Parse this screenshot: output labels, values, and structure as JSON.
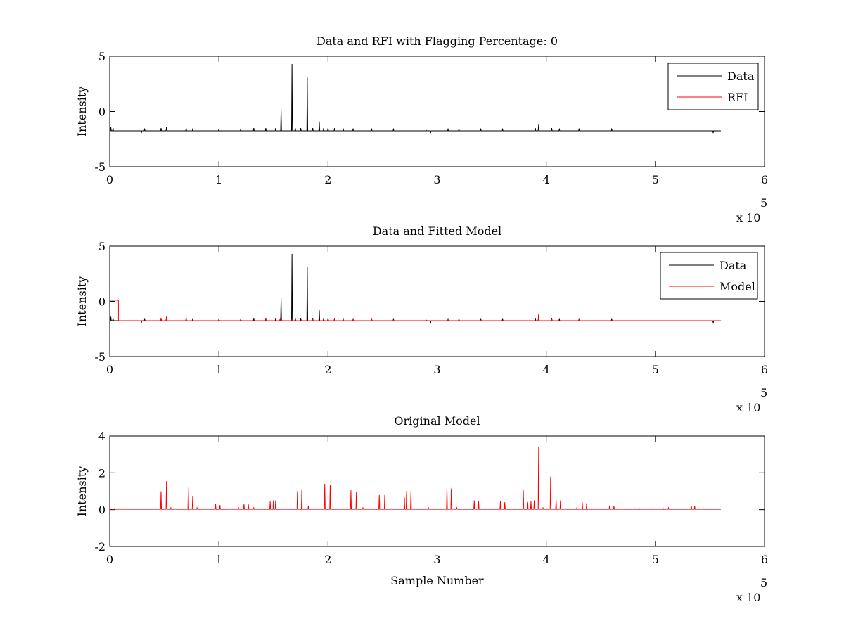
{
  "colors": {
    "data": "#000000",
    "rfi": "#ff0000",
    "model": "#ff0000",
    "background": "#ffffff",
    "axes": "#000000"
  },
  "chart_data": [
    {
      "type": "line",
      "title": "Data and RFI with Flagging Percentage: 0",
      "xlabel": "",
      "ylabel": "Intensity",
      "xlim": [
        0,
        600000
      ],
      "ylim": [
        -5,
        5
      ],
      "xticks": [
        0,
        1,
        2,
        3,
        4,
        5,
        6
      ],
      "xticklabels": [
        "0",
        "1",
        "2",
        "3",
        "4",
        "5",
        "6"
      ],
      "yticks": [
        -5,
        0,
        5
      ],
      "yticklabels": [
        "-5",
        "0",
        "5"
      ],
      "x_exponent_label": "x 10",
      "x_exponent_power": "5",
      "legend": "top-right",
      "series": [
        {
          "name": "Data",
          "color": "#000000",
          "baseline": -1.75,
          "x_end": 560000,
          "spikes": [
            [
              1000,
              -1.4
            ],
            [
              3000,
              -1.5
            ],
            [
              32000,
              -1.6
            ],
            [
              47000,
              -1.5
            ],
            [
              52000,
              -1.4
            ],
            [
              70000,
              -1.5
            ],
            [
              76000,
              -1.6
            ],
            [
              100000,
              -1.6
            ],
            [
              120000,
              -1.6
            ],
            [
              132000,
              -1.5
            ],
            [
              143000,
              -1.5
            ],
            [
              152000,
              -1.5
            ],
            [
              157000,
              0.2
            ],
            [
              167000,
              4.3
            ],
            [
              170000,
              -1.5
            ],
            [
              175000,
              -1.5
            ],
            [
              181000,
              3.1
            ],
            [
              186000,
              -1.5
            ],
            [
              192000,
              -0.9
            ],
            [
              196000,
              -1.5
            ],
            [
              200000,
              -1.5
            ],
            [
              206000,
              -1.5
            ],
            [
              214000,
              -1.6
            ],
            [
              223000,
              -1.6
            ],
            [
              240000,
              -1.6
            ],
            [
              260000,
              -1.6
            ],
            [
              290000,
              -1.7
            ],
            [
              310000,
              -1.6
            ],
            [
              320000,
              -1.6
            ],
            [
              340000,
              -1.6
            ],
            [
              360000,
              -1.6
            ],
            [
              390000,
              -1.5
            ],
            [
              393000,
              -1.2
            ],
            [
              405000,
              -1.5
            ],
            [
              412000,
              -1.6
            ],
            [
              430000,
              -1.6
            ],
            [
              460000,
              -1.6
            ]
          ],
          "dips": [
            [
              29000,
              -1.95
            ],
            [
              294000,
              -1.95
            ],
            [
              553000,
              -1.95
            ]
          ]
        },
        {
          "name": "RFI",
          "color": "#ff0000",
          "baseline": null,
          "spikes": []
        }
      ]
    },
    {
      "type": "line",
      "title": "Data and Fitted Model",
      "xlabel": "",
      "ylabel": "Intensity",
      "xlim": [
        0,
        600000
      ],
      "ylim": [
        -5,
        5
      ],
      "xticks": [
        0,
        1,
        2,
        3,
        4,
        5,
        6
      ],
      "xticklabels": [
        "0",
        "1",
        "2",
        "3",
        "4",
        "5",
        "6"
      ],
      "yticks": [
        -5,
        0,
        5
      ],
      "yticklabels": [
        "-5",
        "0",
        "5"
      ],
      "x_exponent_label": "x 10",
      "x_exponent_power": "5",
      "legend": "top-right",
      "series": [
        {
          "name": "Data",
          "color": "#000000",
          "baseline": -1.75,
          "x_end": 560000,
          "spikes": [
            [
              1000,
              -1.4
            ],
            [
              3000,
              -1.5
            ],
            [
              32000,
              -1.6
            ],
            [
              47000,
              -1.5
            ],
            [
              52000,
              -1.4
            ],
            [
              70000,
              -1.5
            ],
            [
              76000,
              -1.6
            ],
            [
              100000,
              -1.6
            ],
            [
              120000,
              -1.6
            ],
            [
              132000,
              -1.5
            ],
            [
              143000,
              -1.5
            ],
            [
              152000,
              -1.5
            ],
            [
              157000,
              0.3
            ],
            [
              167000,
              4.3
            ],
            [
              170000,
              -1.5
            ],
            [
              175000,
              -1.5
            ],
            [
              181000,
              3.1
            ],
            [
              186000,
              -1.5
            ],
            [
              192000,
              -0.8
            ],
            [
              196000,
              -1.5
            ],
            [
              200000,
              -1.5
            ],
            [
              206000,
              -1.5
            ],
            [
              214000,
              -1.6
            ],
            [
              223000,
              -1.6
            ],
            [
              240000,
              -1.6
            ],
            [
              260000,
              -1.6
            ],
            [
              290000,
              -1.7
            ],
            [
              310000,
              -1.6
            ],
            [
              320000,
              -1.6
            ],
            [
              340000,
              -1.6
            ],
            [
              360000,
              -1.6
            ],
            [
              390000,
              -1.5
            ],
            [
              393000,
              -1.2
            ],
            [
              405000,
              -1.5
            ],
            [
              412000,
              -1.6
            ],
            [
              430000,
              -1.6
            ],
            [
              460000,
              -1.6
            ]
          ],
          "dips": [
            [
              29000,
              -1.95
            ],
            [
              294000,
              -1.95
            ],
            [
              553000,
              -1.95
            ]
          ]
        },
        {
          "name": "Model",
          "color": "#ff0000",
          "baseline": -1.75,
          "x_end": 560000,
          "initial_level": 0.1,
          "initial_end": 8000,
          "spikes": [
            [
              47000,
              -1.5
            ],
            [
              52000,
              -1.45
            ],
            [
              70000,
              -1.45
            ],
            [
              100000,
              -1.6
            ],
            [
              120000,
              -1.6
            ],
            [
              143000,
              -1.6
            ],
            [
              156000,
              -1.6
            ],
            [
              167000,
              -1.6
            ],
            [
              186000,
              -1.6
            ],
            [
              200000,
              -1.6
            ],
            [
              206000,
              -1.5
            ],
            [
              214000,
              -1.65
            ],
            [
              223000,
              -1.65
            ],
            [
              240000,
              -1.65
            ],
            [
              260000,
              -1.7
            ],
            [
              310000,
              -1.65
            ],
            [
              340000,
              -1.7
            ],
            [
              393000,
              -1.2
            ],
            [
              405000,
              -1.6
            ],
            [
              430000,
              -1.65
            ]
          ],
          "dips": []
        }
      ]
    },
    {
      "type": "line",
      "title": "Original Model",
      "xlabel": "Sample Number",
      "ylabel": "Intensity",
      "xlim": [
        0,
        600000
      ],
      "ylim": [
        -2,
        4
      ],
      "xticks": [
        0,
        1,
        2,
        3,
        4,
        5,
        6
      ],
      "xticklabels": [
        "0",
        "1",
        "2",
        "3",
        "4",
        "5",
        "6"
      ],
      "yticks": [
        -2,
        0,
        2,
        4
      ],
      "yticklabels": [
        "-2",
        "0",
        "2",
        "4"
      ],
      "x_exponent_label": "x 10",
      "x_exponent_power": "5",
      "legend": "none",
      "series": [
        {
          "name": "",
          "color": "#ff0000",
          "baseline": 0.02,
          "x_end": 560000,
          "spikes": [
            [
              4000,
              0.05
            ],
            [
              10000,
              0.05
            ],
            [
              42000,
              0.05
            ],
            [
              47000,
              1.0
            ],
            [
              52000,
              1.55
            ],
            [
              56000,
              0.1
            ],
            [
              60000,
              0.05
            ],
            [
              72000,
              1.2
            ],
            [
              76000,
              0.75
            ],
            [
              80000,
              0.1
            ],
            [
              90000,
              0.05
            ],
            [
              97000,
              0.3
            ],
            [
              101000,
              0.25
            ],
            [
              110000,
              0.05
            ],
            [
              118000,
              0.1
            ],
            [
              123000,
              0.3
            ],
            [
              127000,
              0.3
            ],
            [
              132000,
              0.1
            ],
            [
              140000,
              0.05
            ],
            [
              147000,
              0.45
            ],
            [
              150000,
              0.5
            ],
            [
              152000,
              0.5
            ],
            [
              160000,
              0.05
            ],
            [
              172000,
              1.0
            ],
            [
              176000,
              1.1
            ],
            [
              182000,
              0.2
            ],
            [
              190000,
              0.05
            ],
            [
              197000,
              1.4
            ],
            [
              202000,
              1.35
            ],
            [
              210000,
              0.05
            ],
            [
              221000,
              1.05
            ],
            [
              226000,
              0.95
            ],
            [
              232000,
              0.1
            ],
            [
              240000,
              0.05
            ],
            [
              247000,
              0.8
            ],
            [
              252000,
              0.8
            ],
            [
              258000,
              0.05
            ],
            [
              270000,
              0.7
            ],
            [
              272000,
              1.0
            ],
            [
              276000,
              1.0
            ],
            [
              285000,
              0.05
            ],
            [
              292000,
              0.1
            ],
            [
              300000,
              0.05
            ],
            [
              309000,
              1.2
            ],
            [
              313000,
              1.15
            ],
            [
              318000,
              0.1
            ],
            [
              324000,
              0.05
            ],
            [
              334000,
              0.5
            ],
            [
              338000,
              0.45
            ],
            [
              346000,
              0.05
            ],
            [
              358000,
              0.45
            ],
            [
              362000,
              0.4
            ],
            [
              368000,
              0.05
            ],
            [
              379000,
              1.05
            ],
            [
              383000,
              0.4
            ],
            [
              386000,
              0.45
            ],
            [
              389000,
              0.5
            ],
            [
              393000,
              3.4
            ],
            [
              397000,
              0.1
            ],
            [
              404000,
              1.8
            ],
            [
              409000,
              0.55
            ],
            [
              413000,
              0.5
            ],
            [
              418000,
              0.05
            ],
            [
              428000,
              0.1
            ],
            [
              433000,
              0.4
            ],
            [
              437000,
              0.35
            ],
            [
              445000,
              0.05
            ],
            [
              458000,
              0.2
            ],
            [
              462000,
              0.2
            ],
            [
              470000,
              0.05
            ],
            [
              480000,
              0.05
            ],
            [
              485000,
              0.1
            ],
            [
              490000,
              0.05
            ],
            [
              500000,
              0.05
            ],
            [
              507000,
              0.1
            ],
            [
              512000,
              0.1
            ],
            [
              520000,
              0.05
            ],
            [
              533000,
              0.2
            ],
            [
              536000,
              0.2
            ],
            [
              540000,
              0.05
            ],
            [
              548000,
              0.05
            ]
          ],
          "dips": []
        }
      ]
    }
  ]
}
